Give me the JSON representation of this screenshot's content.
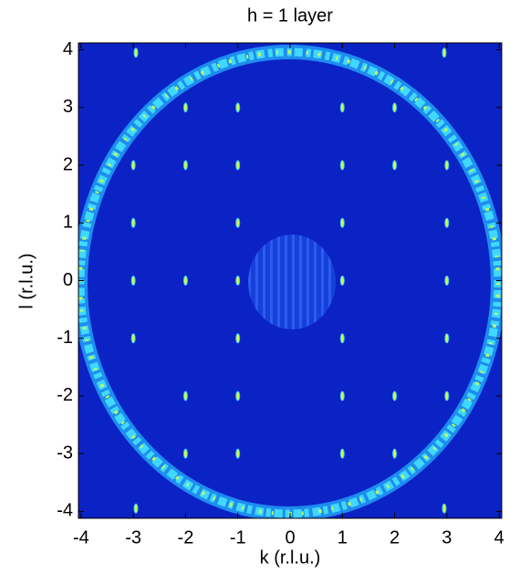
{
  "chart_data": {
    "type": "scatter",
    "title": "h = 1 layer",
    "x_label": "k (r.l.u.)",
    "y_label": "l (r.l.u.)",
    "x": [
      -2.95,
      2.95,
      -2.95,
      2.95,
      -1,
      1,
      -2,
      2,
      -1,
      1,
      -2,
      2,
      -3,
      3,
      -3,
      3,
      -1,
      1,
      -3,
      3,
      -1,
      1,
      -2,
      3,
      -3,
      -1,
      1,
      -2,
      2,
      -1,
      1,
      3,
      -1,
      1,
      2,
      -2
    ],
    "values": [
      3.95,
      3.95,
      -3.95,
      -3.95,
      3,
      3,
      3,
      3,
      2,
      2,
      2,
      2,
      2,
      2,
      1,
      1,
      1,
      1,
      0,
      0,
      0,
      0,
      0,
      -1,
      -1,
      -1,
      -1,
      -2,
      -2,
      -2,
      -2,
      -2,
      -3,
      -3,
      -3,
      -3
    ],
    "color": "#c8ff40",
    "xlim": [
      -4.05,
      4.05
    ],
    "ylim": [
      -4.12,
      4.12
    ],
    "xticks": [
      -4,
      -3,
      -2,
      -1,
      0,
      1,
      2,
      3,
      4
    ],
    "yticks": [
      -4,
      -3,
      -2,
      -1,
      0,
      1,
      2,
      3,
      4
    ]
  }
}
